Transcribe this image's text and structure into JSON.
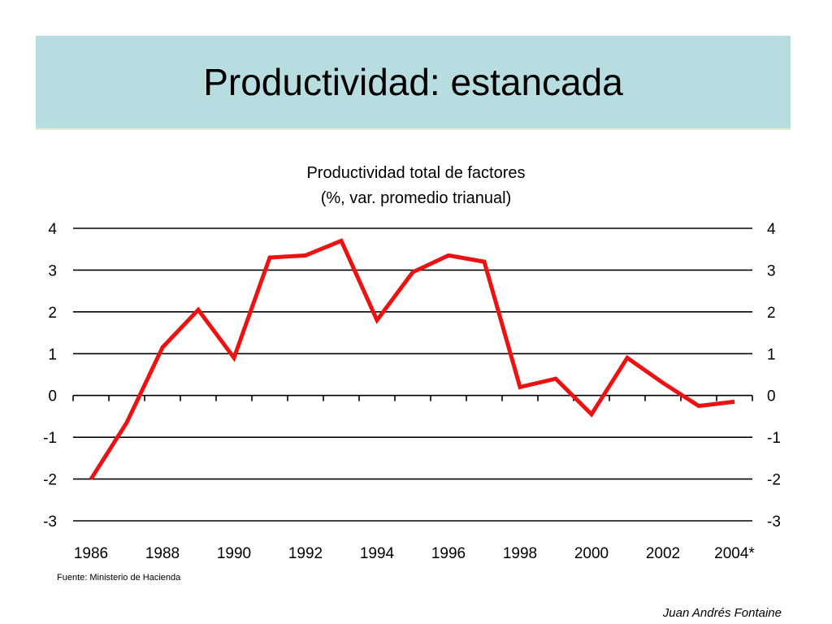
{
  "slide": {
    "title": "Productividad: estancada",
    "source": "Fuente: Ministerio de Hacienda",
    "author": "Juan Andrés Fontaine"
  },
  "chart_data": {
    "type": "line",
    "title": "Productividad total de factores",
    "subtitle": "(%, var. promedio trianual)",
    "xlabel": "",
    "ylabel": "",
    "x": [
      1986,
      1987,
      1988,
      1989,
      1990,
      1991,
      1992,
      1993,
      1994,
      1995,
      1996,
      1997,
      1998,
      1999,
      2000,
      2001,
      2002,
      2003,
      2004
    ],
    "x_tick_labels": [
      "1986",
      "1988",
      "1990",
      "1992",
      "1994",
      "1996",
      "1998",
      "2000",
      "2002",
      "2004*"
    ],
    "series": [
      {
        "values": [
          -2.0,
          -0.65,
          1.15,
          2.05,
          0.9,
          3.3,
          3.35,
          3.7,
          1.8,
          2.95,
          3.35,
          3.2,
          0.2,
          0.4,
          -0.45,
          0.9,
          0.3,
          -0.25,
          -0.15
        ],
        "color": "#ee1111"
      }
    ],
    "ylim": [
      -3,
      4
    ],
    "y_ticks": [
      "4",
      "3",
      "2",
      "1",
      "0",
      "-1",
      "-2",
      "-3"
    ],
    "grid": true,
    "secondary_y_axis": true,
    "legend": "none"
  }
}
